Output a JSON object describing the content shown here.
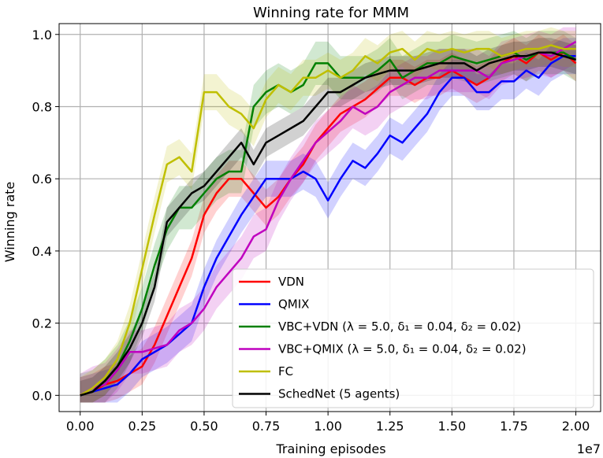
{
  "chart_data": {
    "type": "line",
    "title": "Winning rate for MMM",
    "xlabel": "Training episodes",
    "ylabel": "Winning rate",
    "x_offset_text": "1e7",
    "xlim": [
      -0.085,
      2.1
    ],
    "ylim": [
      -0.045,
      1.03
    ],
    "xticks": [
      0.0,
      0.25,
      0.5,
      0.75,
      1.0,
      1.25,
      1.5,
      1.75,
      2.0
    ],
    "xtick_labels": [
      "0.00",
      "0.25",
      "0.50",
      "0.75",
      "1.00",
      "1.25",
      "1.50",
      "1.75",
      "2.00"
    ],
    "yticks": [
      0.0,
      0.2,
      0.4,
      0.6,
      0.8,
      1.0
    ],
    "ytick_labels": [
      "0.0",
      "0.2",
      "0.4",
      "0.6",
      "0.8",
      "1.0"
    ],
    "grid": true,
    "legend_position": "lower-right",
    "x": [
      0.0,
      0.05,
      0.1,
      0.15,
      0.2,
      0.25,
      0.3,
      0.35,
      0.4,
      0.45,
      0.5,
      0.55,
      0.6,
      0.65,
      0.7,
      0.75,
      0.8,
      0.85,
      0.9,
      0.95,
      1.0,
      1.05,
      1.1,
      1.15,
      1.2,
      1.25,
      1.3,
      1.35,
      1.4,
      1.45,
      1.5,
      1.55,
      1.6,
      1.65,
      1.7,
      1.75,
      1.8,
      1.85,
      1.9,
      1.95,
      2.0
    ],
    "series": [
      {
        "name": "VDN",
        "color": "#ff0000",
        "values": [
          0.0,
          0.01,
          0.03,
          0.04,
          0.06,
          0.08,
          0.14,
          0.22,
          0.3,
          0.38,
          0.5,
          0.56,
          0.6,
          0.6,
          0.56,
          0.52,
          0.55,
          0.6,
          0.64,
          0.7,
          0.74,
          0.78,
          0.8,
          0.82,
          0.85,
          0.88,
          0.88,
          0.86,
          0.88,
          0.88,
          0.9,
          0.88,
          0.86,
          0.88,
          0.92,
          0.94,
          0.92,
          0.95,
          0.93,
          0.95,
          0.92
        ],
        "band": 0.05
      },
      {
        "name": "QMIX",
        "color": "#0000ff",
        "values": [
          0.0,
          0.01,
          0.02,
          0.03,
          0.06,
          0.1,
          0.12,
          0.14,
          0.17,
          0.2,
          0.3,
          0.38,
          0.44,
          0.5,
          0.55,
          0.6,
          0.6,
          0.6,
          0.62,
          0.6,
          0.54,
          0.6,
          0.65,
          0.63,
          0.67,
          0.72,
          0.7,
          0.74,
          0.78,
          0.84,
          0.88,
          0.88,
          0.84,
          0.84,
          0.87,
          0.87,
          0.9,
          0.88,
          0.92,
          0.94,
          0.94
        ],
        "band": 0.05
      },
      {
        "name": "VBC+VDN (λ = 5.0, δ₁ = 0.04, δ₂ = 0.02)",
        "color": "#008000",
        "values": [
          0.0,
          0.01,
          0.04,
          0.08,
          0.15,
          0.24,
          0.36,
          0.46,
          0.52,
          0.52,
          0.56,
          0.6,
          0.62,
          0.62,
          0.8,
          0.84,
          0.86,
          0.84,
          0.86,
          0.92,
          0.92,
          0.88,
          0.88,
          0.88,
          0.9,
          0.93,
          0.88,
          0.9,
          0.92,
          0.92,
          0.94,
          0.93,
          0.92,
          0.93,
          0.94,
          0.95,
          0.93,
          0.95,
          0.95,
          0.95,
          0.93
        ],
        "band": 0.06
      },
      {
        "name": "VBC+QMIX (λ = 5.0, δ₁ = 0.04, δ₂ = 0.02)",
        "color": "#bf00bf",
        "values": [
          0.0,
          0.02,
          0.03,
          0.07,
          0.12,
          0.12,
          0.13,
          0.14,
          0.18,
          0.2,
          0.24,
          0.3,
          0.34,
          0.38,
          0.44,
          0.46,
          0.54,
          0.6,
          0.65,
          0.7,
          0.73,
          0.76,
          0.8,
          0.78,
          0.8,
          0.84,
          0.86,
          0.88,
          0.88,
          0.9,
          0.9,
          0.9,
          0.9,
          0.88,
          0.92,
          0.93,
          0.94,
          0.95,
          0.94,
          0.96,
          0.98
        ],
        "band": 0.06
      },
      {
        "name": "FC",
        "color": "#bfbf00",
        "values": [
          0.0,
          0.02,
          0.05,
          0.1,
          0.2,
          0.35,
          0.5,
          0.64,
          0.66,
          0.62,
          0.84,
          0.84,
          0.8,
          0.78,
          0.74,
          0.82,
          0.86,
          0.84,
          0.88,
          0.88,
          0.9,
          0.88,
          0.9,
          0.94,
          0.92,
          0.95,
          0.96,
          0.93,
          0.96,
          0.95,
          0.96,
          0.95,
          0.96,
          0.96,
          0.94,
          0.95,
          0.96,
          0.96,
          0.97,
          0.96,
          0.96
        ],
        "band": 0.05
      },
      {
        "name": "SchedNet (5 agents)",
        "color": "#000000",
        "values": [
          0.0,
          0.01,
          0.04,
          0.08,
          0.13,
          0.2,
          0.3,
          0.48,
          0.52,
          0.56,
          0.58,
          0.62,
          0.66,
          0.7,
          0.64,
          0.7,
          0.72,
          0.74,
          0.76,
          0.8,
          0.84,
          0.84,
          0.86,
          0.88,
          0.89,
          0.9,
          0.9,
          0.9,
          0.91,
          0.92,
          0.92,
          0.92,
          0.9,
          0.92,
          0.93,
          0.94,
          0.94,
          0.95,
          0.95,
          0.94,
          0.93
        ],
        "band": 0.04
      }
    ]
  }
}
